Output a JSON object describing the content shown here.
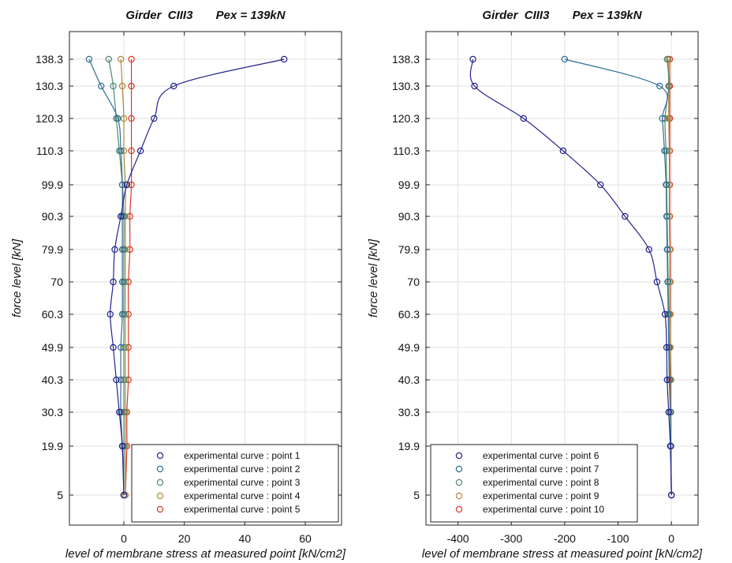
{
  "chart_data": [
    {
      "type": "line",
      "title": "Girder  CIII3       Pex = 139kN",
      "xlabel": "level of membrane stress at measured point [kN/cm2]",
      "ylabel": "force level [kN]",
      "xlim": [
        -18,
        72
      ],
      "xticks": [
        0,
        20,
        40,
        60
      ],
      "yticks": [
        5,
        19.9,
        30.3,
        40.3,
        49.9,
        60.3,
        70,
        79.9,
        90.3,
        99.9,
        110.3,
        120.3,
        130.3,
        138.3
      ],
      "grid": true,
      "legend_position": "bottom-right",
      "y": [
        5,
        19.9,
        30.3,
        40.3,
        49.9,
        60.3,
        70,
        79.9,
        90.3,
        99.9,
        110.3,
        120.3,
        130.3,
        138.3
      ],
      "series": [
        {
          "name": "experimental curve : point 1",
          "color": "#23238e",
          "x": [
            0,
            -0.5,
            -1.5,
            -2.5,
            -3.5,
            -4.5,
            -3.5,
            -3,
            -1,
            1,
            5.5,
            10,
            16.5,
            53
          ]
        },
        {
          "name": "experimental curve : point 2",
          "color": "#2e6e96",
          "x": [
            0,
            -0.5,
            -1,
            -1,
            -1,
            -0.5,
            -0.5,
            -0.5,
            -0.5,
            -0.5,
            -1,
            -2,
            -7.5,
            -11.5
          ]
        },
        {
          "name": "experimental curve : point 3",
          "color": "#4f8a70",
          "x": [
            0,
            0,
            0,
            0,
            0,
            0,
            0,
            0,
            0,
            -0.5,
            -1.5,
            -2.5,
            -3.5,
            -5
          ]
        },
        {
          "name": "experimental curve : point 4",
          "color": "#b08a3a",
          "x": [
            0.5,
            0.5,
            0.5,
            0.5,
            0.5,
            0.5,
            0.5,
            0.5,
            0.5,
            0.5,
            0,
            0,
            -0.5,
            -1
          ]
        },
        {
          "name": "experimental curve : point 5",
          "color": "#d63a2a",
          "x": [
            0.5,
            1,
            1,
            1.5,
            1.5,
            1.5,
            1.5,
            2,
            2,
            2.5,
            2.5,
            2.5,
            2.5,
            2.5
          ]
        }
      ]
    },
    {
      "type": "line",
      "title": "Girder  CIII3       Pex = 139kN",
      "xlabel": "level of membrane stress at measured point [kN/cm2]",
      "ylabel": "force level [kN]",
      "xlim": [
        -460,
        50
      ],
      "xticks": [
        -400,
        -300,
        -200,
        -100,
        0
      ],
      "yticks": [
        5,
        19.9,
        30.3,
        40.3,
        49.9,
        60.3,
        70,
        79.9,
        90.3,
        99.9,
        110.3,
        120.3,
        130.3,
        138.3
      ],
      "grid": true,
      "legend_position": "bottom-left",
      "y": [
        5,
        19.9,
        30.3,
        40.3,
        49.9,
        60.3,
        70,
        79.9,
        90.3,
        99.9,
        110.3,
        120.3,
        130.3,
        138.3
      ],
      "series": [
        {
          "name": "experimental curve : point 6",
          "color": "#23238e",
          "x": [
            0,
            -2,
            -5,
            -8,
            -9,
            -12,
            -27,
            -42,
            -87,
            -133,
            -203,
            -277,
            -369,
            -372
          ]
        },
        {
          "name": "experimental curve : point 7",
          "color": "#2e6e96",
          "x": [
            0,
            -1,
            -2,
            -4,
            -5,
            -6,
            -7,
            -8,
            -9,
            -10,
            -13,
            -17,
            -22,
            -200
          ]
        },
        {
          "name": "experimental curve : point 8",
          "color": "#4f8a70",
          "x": [
            0,
            -1,
            -2,
            -3,
            -4,
            -5,
            -6,
            -7,
            -8,
            -9,
            -10,
            -12,
            -5,
            -8
          ]
        },
        {
          "name": "experimental curve : point 9",
          "color": "#b08a3a",
          "x": [
            0,
            -1,
            -1,
            -2,
            -2,
            -3,
            -3,
            -3,
            -4,
            -4,
            -4,
            -5,
            -5,
            -6
          ]
        },
        {
          "name": "experimental curve : point 10",
          "color": "#d63a2a",
          "x": [
            0,
            -1,
            -1,
            -1,
            -2,
            -2,
            -2,
            -2,
            -3,
            -3,
            -3,
            -3,
            -3,
            -3
          ]
        }
      ]
    }
  ]
}
